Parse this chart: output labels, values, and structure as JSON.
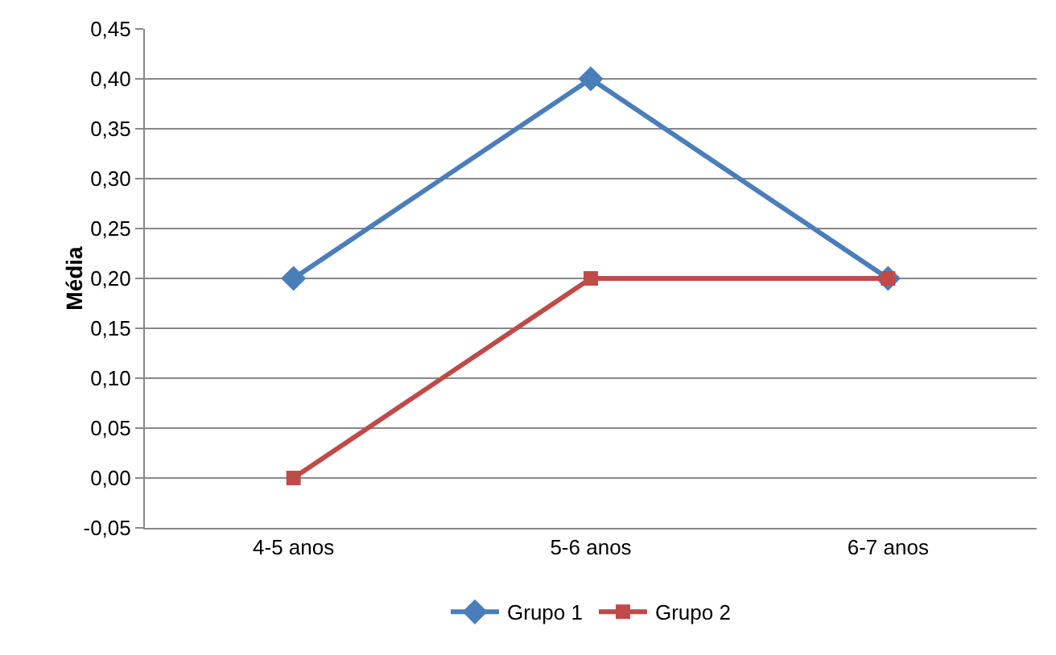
{
  "chart_data": {
    "type": "line",
    "ylabel": "Média",
    "categories": [
      "4-5 anos",
      "5-6 anos",
      "6-7 anos"
    ],
    "series": [
      {
        "name": "Grupo 1",
        "color": "#4a7ebb",
        "marker": "diamond",
        "values": [
          0.2,
          0.4,
          0.2
        ]
      },
      {
        "name": "Grupo 2",
        "color": "#be4b48",
        "marker": "square",
        "values": [
          0,
          0.2,
          0.2
        ]
      }
    ],
    "ylim": [
      -0.05,
      0.45
    ],
    "yticks": [
      {
        "value": -0.05,
        "label": "-0,05"
      },
      {
        "value": 0,
        "label": "0,00"
      },
      {
        "value": 0.05,
        "label": "0,05"
      },
      {
        "value": 0.1,
        "label": "0,10"
      },
      {
        "value": 0.15,
        "label": "0,15"
      },
      {
        "value": 0.2,
        "label": "0,20"
      },
      {
        "value": 0.25,
        "label": "0,25"
      },
      {
        "value": 0.3,
        "label": "0,30"
      },
      {
        "value": 0.35,
        "label": "0,35"
      },
      {
        "value": 0.4,
        "label": "0,40"
      },
      {
        "value": 0.45,
        "label": "0,45"
      }
    ],
    "grid": "y",
    "legend": "bottom",
    "line_style": "solid"
  }
}
